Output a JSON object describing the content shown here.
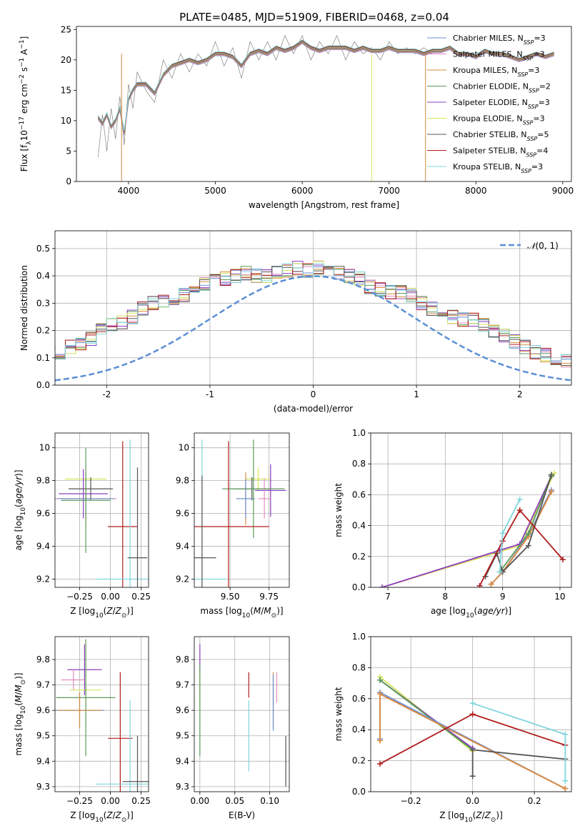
{
  "figure_title": "PLATE=0485, MJD=51909, FIBERID=0468, z=0.04",
  "colors": {
    "Chabrier MILES": "#6b8fd6",
    "Salpeter MILES": "#e48bbf",
    "Kroupa MILES": "#d88b3a",
    "Chabrier ELODIE": "#5b9b5b",
    "Salpeter ELODIE": "#8d3cbf",
    "Kroupa ELODIE": "#d7e45c",
    "Chabrier STELIB": "#555555",
    "Salpeter STELIB": "#b01c1c",
    "Kroupa STELIB": "#7fd6dc",
    "norm": "#5b8fd6",
    "grid": "#b0b0b0",
    "data_spectrum": "#707070"
  },
  "chart_data": [
    {
      "id": "spectrum",
      "type": "line",
      "xlabel": "wavelength [Angstrom, rest frame]",
      "ylabel": "Flux [f_λ10^-17 erg cm^-2 s^-1 A^-1]",
      "xlim": [
        3400,
        9100
      ],
      "ylim": [
        0,
        25.5
      ],
      "xticks": [
        4000,
        5000,
        6000,
        7000,
        8000,
        9000
      ],
      "yticks": [
        0,
        5,
        10,
        15,
        20,
        25
      ],
      "legend": [
        "Chabrier MILES, N_SSP=3",
        "Salpeter MILES, N_SSP=3",
        "Kroupa MILES, N_SSP=3",
        "Chabrier ELODIE, N_SSP=2",
        "Salpeter ELODIE, N_SSP=3",
        "Kroupa ELODIE, N_SSP=3",
        "Chabrier STELIB, N_SSP=5",
        "Salpeter STELIB, N_SSP=4",
        "Kroupa STELIB, N_SSP=3"
      ],
      "legend_placement": "right",
      "model_x": [
        3650,
        3700,
        3750,
        3800,
        3850,
        3900,
        3950,
        4000,
        4050,
        4100,
        4200,
        4300,
        4400,
        4500,
        4600,
        4700,
        4800,
        4900,
        5000,
        5100,
        5200,
        5300,
        5400,
        5500,
        5600,
        5700,
        5800,
        5900,
        6000,
        6100,
        6200,
        6300,
        6400,
        6500,
        6600,
        6700,
        6800,
        6900,
        7000,
        7100,
        7200,
        7300,
        7400,
        7500,
        7600,
        7700,
        7800,
        7900,
        8000,
        8100,
        8200,
        8300,
        8400,
        8500,
        8600,
        8700,
        8800,
        8900
      ],
      "model_y": [
        10.5,
        9.5,
        11,
        9,
        10,
        12,
        8,
        13.5,
        15,
        16,
        16,
        14.5,
        17.5,
        19,
        19.5,
        20,
        19.5,
        20,
        21,
        21,
        20.5,
        19,
        21,
        21.5,
        21,
        22,
        21.5,
        22,
        23,
        22,
        21.5,
        22,
        22,
        22,
        21.5,
        22,
        21.5,
        21.5,
        22,
        21.5,
        21.5,
        21.5,
        21,
        21.5,
        21.5,
        22,
        21,
        21,
        20.5,
        21.5,
        21,
        21,
        20.5,
        20,
        20.5,
        21,
        20.5,
        21
      ],
      "data_x": [
        3650,
        3700,
        3750,
        3800,
        3850,
        3900,
        3950,
        4000,
        4050,
        4100,
        4200,
        4300,
        4400,
        4500,
        4600,
        4700,
        4800,
        4900,
        5000,
        5100,
        5200,
        5300,
        5400,
        5500,
        5600,
        5700,
        5800,
        5900,
        6000,
        6100,
        6200,
        6300,
        6400,
        6500,
        6600,
        6700,
        6800,
        6900,
        7000,
        7100,
        7200,
        7300,
        7400,
        7500
      ],
      "data_y": [
        4,
        11,
        5,
        12,
        7,
        14,
        6,
        16,
        12,
        18,
        15,
        13,
        20,
        17,
        21,
        18,
        21,
        19,
        23,
        19,
        22,
        17,
        23,
        20,
        23,
        20,
        24,
        21,
        24,
        20,
        23,
        21,
        24,
        20,
        23,
        21,
        22,
        20,
        23,
        21,
        22,
        21,
        22,
        21
      ],
      "drops": [
        {
          "series": "Kroupa MILES",
          "x": 3920
        },
        {
          "series": "Kroupa ELODIE",
          "x": 6800
        },
        {
          "series": "Kroupa MILES",
          "x": 7420
        }
      ]
    },
    {
      "id": "residuals",
      "type": "step",
      "xlabel": "(data-model)/error",
      "ylabel": "Normed distribution",
      "xlim": [
        -2.5,
        2.5
      ],
      "ylim": [
        0,
        0.565
      ],
      "xticks": [
        -2,
        -1,
        0,
        1,
        2
      ],
      "yticks": [
        0.0,
        0.1,
        0.2,
        0.3,
        0.4,
        0.5
      ],
      "grid": true,
      "legend": [
        "N(0,1)"
      ],
      "legend_placement": "top-right",
      "bin_width": 0.1,
      "base_values": [
        0.02,
        0.025,
        0.035,
        0.04,
        0.05,
        0.055,
        0.065,
        0.08,
        0.1,
        0.12,
        0.12,
        0.14,
        0.15,
        0.17,
        0.2,
        0.22,
        0.23,
        0.25,
        0.28,
        0.3,
        0.31,
        0.32,
        0.33,
        0.35,
        0.37,
        0.38,
        0.39,
        0.4,
        0.41,
        0.4,
        0.4,
        0.41,
        0.42,
        0.43,
        0.42,
        0.43,
        0.42,
        0.41,
        0.4,
        0.39,
        0.36,
        0.35,
        0.34,
        0.34,
        0.33,
        0.3,
        0.28,
        0.27,
        0.25,
        0.24,
        0.24,
        0.22,
        0.2,
        0.18,
        0.16,
        0.14,
        0.12,
        0.11,
        0.1,
        0.09,
        0.08,
        0.07,
        0.06,
        0.05,
        0.045,
        0.04,
        0.035,
        0.03,
        0.025,
        0.02
      ]
    },
    {
      "id": "age_vs_Z",
      "type": "errorbar",
      "xlabel": "Z [log10(Z/Z⊙)]",
      "ylabel": "age [log10(age/yr)]",
      "xlim": [
        -0.45,
        0.31
      ],
      "ylim": [
        9.15,
        10.09
      ],
      "xticks": [
        -0.25,
        0.0,
        0.25
      ],
      "xticklabels": [
        "−0.25",
        "0.00",
        "0.25"
      ],
      "yticks": [
        9.2,
        9.4,
        9.6,
        9.8,
        10.0
      ],
      "grid": true,
      "points": [
        {
          "series": "Kroupa ELODIE",
          "x": -0.2,
          "y": 9.81,
          "xerr": 0.17,
          "yerr": 0.07
        },
        {
          "series": "Chabrier STELIB",
          "x": -0.16,
          "y": 9.75,
          "xerr": 0.18,
          "yerr": 0.07
        },
        {
          "series": "Salpeter ELODIE",
          "x": -0.22,
          "y": 9.72,
          "xerr": 0.2,
          "yerr": 0.15
        },
        {
          "series": "Kroupa MILES",
          "x": -0.2,
          "y": 9.69,
          "xerr": 0.24,
          "yerr": 0.16
        },
        {
          "series": "Salpeter MILES",
          "x": -0.2,
          "y": 9.69,
          "xerr": 0.25,
          "yerr": 0.13
        },
        {
          "series": "Chabrier MILES",
          "x": -0.2,
          "y": 9.69,
          "xerr": 0.23,
          "yerr": 0.12
        },
        {
          "series": "Chabrier ELODIE",
          "x": -0.2,
          "y": 9.68,
          "xerr": 0.2,
          "yerr": 0.32
        },
        {
          "series": "Salpeter STELIB",
          "x": 0.1,
          "y": 9.52,
          "xerr": 0.12,
          "yerr": 0.52
        },
        {
          "series": "Kroupa STELIB",
          "x": 0.16,
          "y": 9.2,
          "xerr": 0.28,
          "yerr": 0.85
        },
        {
          "series": "Chabrier STELIB",
          "x": 0.22,
          "y": 9.33,
          "xerr": 0.08,
          "yerr": 0.55
        }
      ]
    },
    {
      "id": "age_vs_mass",
      "type": "errorbar",
      "xlabel": "mass [log10(M/M⊙)]",
      "xlim": [
        9.27,
        9.88
      ],
      "ylim": [
        9.15,
        10.09
      ],
      "xticks": [
        9.5,
        9.75
      ],
      "xticklabels": [
        "9.50",
        "9.75"
      ],
      "yticks": [
        9.2,
        9.4,
        9.6,
        9.8,
        10.0
      ],
      "grid": true,
      "points": [
        {
          "series": "Kroupa ELODIE",
          "x": 9.68,
          "y": 9.81,
          "xerr": 0.08,
          "yerr": 0.07
        },
        {
          "series": "Chabrier STELIB",
          "x": 9.64,
          "y": 9.75,
          "xerr": 0.12,
          "yerr": 0.07
        },
        {
          "series": "Salpeter ELODIE",
          "x": 9.76,
          "y": 9.74,
          "xerr": 0.1,
          "yerr": 0.16
        },
        {
          "series": "Kroupa MILES",
          "x": 9.6,
          "y": 9.69,
          "xerr": 0.06,
          "yerr": 0.16
        },
        {
          "series": "Salpeter MILES",
          "x": 9.72,
          "y": 9.69,
          "xerr": 0.04,
          "yerr": 0.12
        },
        {
          "series": "Chabrier MILES",
          "x": 9.6,
          "y": 9.69,
          "xerr": 0.06,
          "yerr": 0.12
        },
        {
          "series": "Chabrier ELODIE",
          "x": 9.65,
          "y": 9.75,
          "xerr": 0.2,
          "yerr": 0.3
        },
        {
          "series": "Salpeter STELIB",
          "x": 9.49,
          "y": 9.52,
          "xerr": 0.26,
          "yerr": 0.52
        },
        {
          "series": "Kroupa STELIB",
          "x": 9.32,
          "y": 9.2,
          "xerr": 0.16,
          "yerr": 0.85
        },
        {
          "series": "Chabrier STELIB",
          "x": 9.32,
          "y": 9.33,
          "xerr": 0.09,
          "yerr": 0.5
        }
      ]
    },
    {
      "id": "weight_vs_age",
      "type": "line",
      "xlabel": "age [log10(age/yr)]",
      "ylabel": "mass weight",
      "xlim": [
        6.7,
        10.2
      ],
      "ylim": [
        0,
        1.0
      ],
      "xticks": [
        7,
        8,
        9,
        10
      ],
      "yticks": [
        0.0,
        0.2,
        0.4,
        0.6,
        0.8,
        1.0
      ],
      "grid": true,
      "series": [
        {
          "series": "Kroupa ELODIE",
          "x": [
            6.9,
            9.3,
            9.9
          ],
          "y": [
            0.0,
            0.27,
            0.74
          ]
        },
        {
          "series": "Salpeter ELODIE",
          "x": [
            6.9,
            8.95,
            9.3,
            9.85
          ],
          "y": [
            0.0,
            0.24,
            0.28,
            0.72
          ]
        },
        {
          "series": "Chabrier MILES",
          "x": [
            8.8,
            9.0,
            9.45,
            9.85
          ],
          "y": [
            0.02,
            0.1,
            0.34,
            0.63
          ]
        },
        {
          "series": "Salpeter MILES",
          "x": [
            8.8,
            9.0,
            9.45,
            9.85
          ],
          "y": [
            0.02,
            0.1,
            0.33,
            0.62
          ]
        },
        {
          "series": "Kroupa MILES",
          "x": [
            8.8,
            9.0,
            9.45,
            9.85
          ],
          "y": [
            0.02,
            0.1,
            0.33,
            0.62
          ]
        },
        {
          "series": "Chabrier ELODIE",
          "x": [
            8.95,
            9.45,
            9.85
          ],
          "y": [
            0.1,
            0.35,
            0.72
          ]
        },
        {
          "series": "Chabrier STELIB",
          "x": [
            8.7,
            8.9,
            9.0,
            9.45,
            9.85
          ],
          "y": [
            0.07,
            0.22,
            0.1,
            0.27,
            0.73
          ]
        },
        {
          "series": "Salpeter STELIB",
          "x": [
            8.6,
            9.0,
            9.3,
            10.05
          ],
          "y": [
            0.01,
            0.3,
            0.5,
            0.18
          ]
        },
        {
          "series": "Kroupa STELIB",
          "x": [
            8.95,
            9.0,
            9.3
          ],
          "y": [
            0.1,
            0.35,
            0.57
          ]
        }
      ]
    },
    {
      "id": "mass_vs_Z",
      "type": "errorbar",
      "xlabel": "Z [log10(Z/Z⊙)]",
      "ylabel": "mass [log10(M/M⊙)]",
      "xlim": [
        -0.45,
        0.31
      ],
      "ylim": [
        9.28,
        9.89
      ],
      "xticks": [
        -0.25,
        0.0,
        0.25
      ],
      "xticklabels": [
        "−0.25",
        "0.00",
        "0.25"
      ],
      "yticks": [
        9.3,
        9.4,
        9.5,
        9.6,
        9.7,
        9.8
      ],
      "grid": true,
      "points": [
        {
          "series": "Salpeter ELODIE",
          "x": -0.21,
          "y": 9.76,
          "xerr": 0.14,
          "yerr": 0.1
        },
        {
          "series": "Salpeter MILES",
          "x": -0.3,
          "y": 9.72,
          "xerr": 0.1,
          "yerr": 0.04
        },
        {
          "series": "Kroupa ELODIE",
          "x": -0.2,
          "y": 9.68,
          "xerr": 0.13,
          "yerr": 0.08
        },
        {
          "series": "Chabrier ELODIE",
          "x": -0.2,
          "y": 9.65,
          "xerr": 0.24,
          "yerr": 0.23
        },
        {
          "series": "Chabrier MILES",
          "x": -0.25,
          "y": 9.6,
          "xerr": 0.2,
          "yerr": 0.07
        },
        {
          "series": "Kroupa MILES",
          "x": -0.25,
          "y": 9.6,
          "xerr": 0.18,
          "yerr": 0.07
        },
        {
          "series": "Salpeter STELIB",
          "x": 0.08,
          "y": 9.49,
          "xerr": 0.1,
          "yerr": 0.26
        },
        {
          "series": "Kroupa STELIB",
          "x": 0.16,
          "y": 9.31,
          "xerr": 0.28,
          "yerr": 0.33
        },
        {
          "series": "Chabrier STELIB",
          "x": 0.22,
          "y": 9.32,
          "xerr": 0.12,
          "yerr": 0.18
        }
      ]
    },
    {
      "id": "mass_vs_EBV",
      "type": "errorbar",
      "xlabel": "E(B-V)",
      "xlim": [
        -0.008,
        0.128
      ],
      "ylim": [
        9.28,
        9.89
      ],
      "xticks": [
        0.0,
        0.05,
        0.1
      ],
      "xticklabels": [
        "0.00",
        "0.05",
        "0.10"
      ],
      "yticks": [
        9.3,
        9.4,
        9.5,
        9.6,
        9.7,
        9.8
      ],
      "grid": true,
      "points": [
        {
          "series": "Salpeter ELODIE",
          "x": 0.0,
          "y": 9.76,
          "xerr": 0.0,
          "yerr": 0.1
        },
        {
          "series": "Kroupa ELODIE",
          "x": 0.0,
          "y": 9.68,
          "xerr": 0.0,
          "yerr": 0.08
        },
        {
          "series": "Chabrier ELODIE",
          "x": 0.0,
          "y": 9.6,
          "xerr": 0.0,
          "yerr": 0.18
        },
        {
          "series": "Salpeter STELIB",
          "x": 0.07,
          "y": 9.7,
          "xerr": 0.0,
          "yerr": 0.05
        },
        {
          "series": "Kroupa STELIB",
          "x": 0.07,
          "y": 9.5,
          "xerr": 0.0,
          "yerr": 0.14
        },
        {
          "series": "Salpeter MILES",
          "x": 0.11,
          "y": 9.69,
          "xerr": 0.0,
          "yerr": 0.06
        },
        {
          "series": "Kroupa MILES",
          "x": 0.105,
          "y": 9.64,
          "xerr": 0.0,
          "yerr": 0.11
        },
        {
          "series": "Chabrier MILES",
          "x": 0.105,
          "y": 9.63,
          "xerr": 0.0,
          "yerr": 0.11
        },
        {
          "series": "Chabrier STELIB",
          "x": 0.123,
          "y": 9.4,
          "xerr": 0.0,
          "yerr": 0.1
        }
      ]
    },
    {
      "id": "weight_vs_Z",
      "type": "line",
      "xlabel": "Z [log10(Z/Z⊙)]",
      "ylabel": "mass weight",
      "xlim": [
        -0.33,
        0.32
      ],
      "ylim": [
        0,
        1.0
      ],
      "xticks": [
        -0.2,
        0.0,
        0.2
      ],
      "xticklabels": [
        "−0.2",
        "0.0",
        "0.2"
      ],
      "yticks": [
        0.0,
        0.2,
        0.4,
        0.6,
        0.8,
        1.0
      ],
      "grid": true,
      "series": [
        {
          "series": "Kroupa ELODIE",
          "x": [
            -0.3,
            0.0
          ],
          "y": [
            0.74,
            0.26
          ]
        },
        {
          "series": "Salpeter ELODIE",
          "x": [
            -0.3,
            0.0
          ],
          "y": [
            0.72,
            0.28
          ]
        },
        {
          "series": "Chabrier ELODIE",
          "x": [
            -0.3,
            0.0
          ],
          "y": [
            0.72,
            0.27
          ]
        },
        {
          "series": "Chabrier MILES",
          "x": [
            -0.3,
            -0.3,
            0.3
          ],
          "y": [
            0.34,
            0.64,
            0.02
          ]
        },
        {
          "series": "Salpeter MILES",
          "x": [
            -0.3,
            -0.3,
            0.3
          ],
          "y": [
            0.33,
            0.63,
            0.02
          ]
        },
        {
          "series": "Kroupa MILES",
          "x": [
            -0.3,
            -0.3,
            0.3
          ],
          "y": [
            0.33,
            0.63,
            0.02
          ]
        },
        {
          "series": "Salpeter STELIB",
          "x": [
            -0.3,
            0.0,
            0.3
          ],
          "y": [
            0.18,
            0.5,
            0.3
          ]
        },
        {
          "series": "Chabrier STELIB",
          "x": [
            0.0,
            0.0,
            0.3
          ],
          "y": [
            0.1,
            0.27,
            0.21
          ]
        },
        {
          "series": "Kroupa STELIB",
          "x": [
            0.0,
            0.3,
            0.3
          ],
          "y": [
            0.57,
            0.37,
            0.07
          ]
        }
      ]
    }
  ]
}
